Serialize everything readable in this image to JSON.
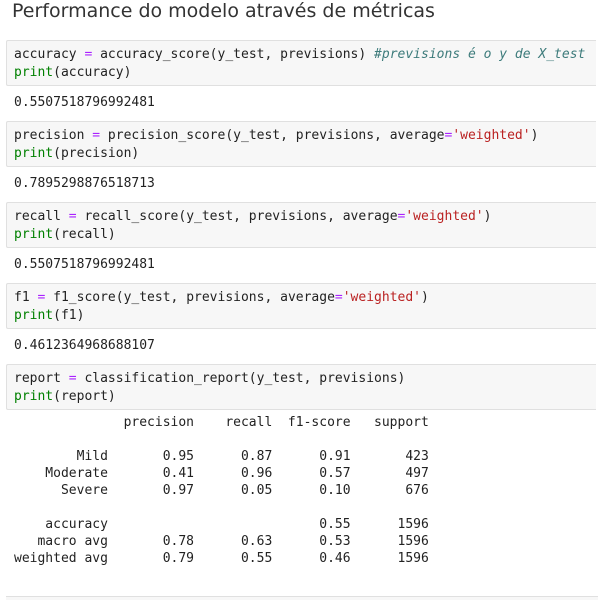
{
  "header": {
    "title": "Performance do modelo através de métricas"
  },
  "cells": [
    {
      "code": [
        "accuracy = accuracy_score(y_test, previsions) #previsions é o y de X_test",
        "print(accuracy)"
      ],
      "output": "0.5507518796992481"
    },
    {
      "code": [
        "precision = precision_score(y_test, previsions, average='weighted')",
        "print(precision)"
      ],
      "output": "0.7895298876518713"
    },
    {
      "code": [
        "recall = recall_score(y_test, previsions, average='weighted')",
        "print(recall)"
      ],
      "output": "0.5507518796992481"
    },
    {
      "code": [
        "f1 = f1_score(y_test, previsions, average='weighted')",
        "print(f1)"
      ],
      "output": "0.4612364968688107"
    },
    {
      "code": [
        "report = classification_report(y_test, previsions)",
        "print(report)"
      ],
      "output": "              precision    recall  f1-score   support\n\n        Mild       0.95      0.87      0.91       423\n    Moderate       0.41      0.96      0.57       497\n      Severe       0.97      0.05      0.10       676\n\n    accuracy                           0.55      1596\n   macro avg       0.78      0.63      0.53      1596\nweighted avg       0.79      0.55      0.46      1596"
    }
  ]
}
